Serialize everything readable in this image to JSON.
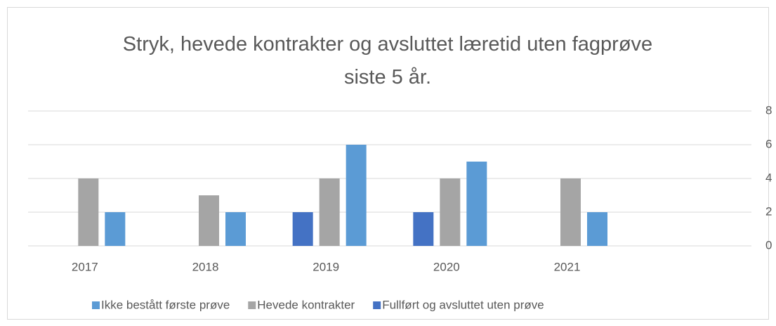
{
  "chart_data": {
    "type": "bar",
    "title": "Stryk, hevede kontrakter og avsluttet læretid uten fagprøve siste 5 år.",
    "categories": [
      "2017",
      "2018",
      "2019",
      "2020",
      "2021",
      null
    ],
    "series": [
      {
        "name": "Ikke bestått første prøve",
        "color": "#5b9bd5",
        "values": [
          2,
          2,
          6,
          5,
          2,
          null
        ]
      },
      {
        "name": "Hevede kontrakter",
        "color": "#a5a5a5",
        "values": [
          4,
          3,
          4,
          4,
          4,
          null
        ]
      },
      {
        "name": "Fullført og avsluttet uten prøve",
        "color": "#4472c4",
        "values": [
          null,
          null,
          2,
          2,
          null,
          null
        ]
      }
    ],
    "ylim": [
      0,
      8
    ],
    "yticks": [
      0,
      2,
      4,
      6,
      8
    ],
    "grid": true,
    "legend": "bottom"
  }
}
